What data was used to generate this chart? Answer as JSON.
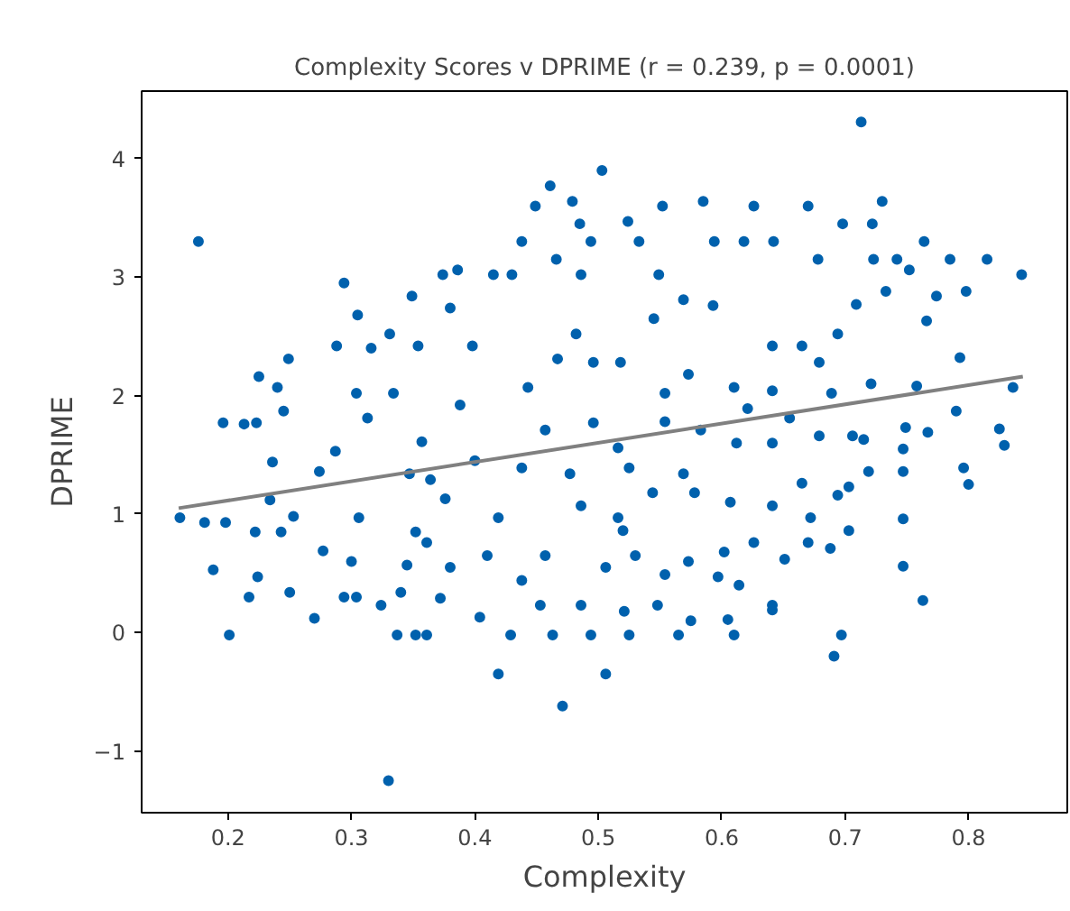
{
  "chart_data": {
    "type": "scatter",
    "title": "Complexity Scores v DPRIME (r = 0.239, p = 0.0001)",
    "xlabel": "Complexity",
    "ylabel": "DPRIME",
    "xlim": [
      0.13,
      0.88
    ],
    "ylim": [
      -1.52,
      4.57
    ],
    "xticks": [
      0.2,
      0.3,
      0.4,
      0.5,
      0.6,
      0.7,
      0.8
    ],
    "yticks": [
      -1,
      0,
      1,
      2,
      3,
      4
    ],
    "grid": false,
    "series": [
      {
        "marker": "circle",
        "color": "#0061ad",
        "x": [
          0.176,
          0.161,
          0.181,
          0.198,
          0.188,
          0.201,
          0.196,
          0.213,
          0.223,
          0.225,
          0.24,
          0.245,
          0.249,
          0.236,
          0.234,
          0.222,
          0.217,
          0.224,
          0.25,
          0.253,
          0.243,
          0.27,
          0.277,
          0.274,
          0.287,
          0.288,
          0.294,
          0.305,
          0.316,
          0.304,
          0.294,
          0.304,
          0.3,
          0.306,
          0.313,
          0.331,
          0.33,
          0.324,
          0.337,
          0.352,
          0.361,
          0.34,
          0.345,
          0.352,
          0.334,
          0.349,
          0.374,
          0.386,
          0.38,
          0.354,
          0.357,
          0.347,
          0.364,
          0.376,
          0.361,
          0.38,
          0.372,
          0.388,
          0.4,
          0.398,
          0.415,
          0.43,
          0.419,
          0.404,
          0.429,
          0.438,
          0.449,
          0.461,
          0.479,
          0.485,
          0.494,
          0.503,
          0.466,
          0.486,
          0.471,
          0.506,
          0.463,
          0.494,
          0.486,
          0.453,
          0.419,
          0.438,
          0.457,
          0.477,
          0.486,
          0.443,
          0.467,
          0.482,
          0.496,
          0.516,
          0.506,
          0.457,
          0.438,
          0.41,
          0.496,
          0.516,
          0.713,
          0.552,
          0.585,
          0.626,
          0.67,
          0.73,
          0.698,
          0.722,
          0.524,
          0.533,
          0.594,
          0.618,
          0.642,
          0.678,
          0.723,
          0.742,
          0.764,
          0.785,
          0.815,
          0.843,
          0.798,
          0.774,
          0.752,
          0.733,
          0.709,
          0.766,
          0.694,
          0.665,
          0.641,
          0.679,
          0.793,
          0.836,
          0.758,
          0.721,
          0.689,
          0.641,
          0.61,
          0.573,
          0.554,
          0.518,
          0.545,
          0.569,
          0.593,
          0.549,
          0.621,
          0.655,
          0.679,
          0.706,
          0.715,
          0.749,
          0.767,
          0.79,
          0.825,
          0.829,
          0.796,
          0.8,
          0.747,
          0.747,
          0.719,
          0.703,
          0.694,
          0.665,
          0.641,
          0.612,
          0.583,
          0.554,
          0.525,
          0.544,
          0.578,
          0.607,
          0.641,
          0.747,
          0.703,
          0.688,
          0.67,
          0.651,
          0.626,
          0.602,
          0.573,
          0.554,
          0.53,
          0.52,
          0.747,
          0.763,
          0.641,
          0.614,
          0.597,
          0.548,
          0.521,
          0.525,
          0.565,
          0.575,
          0.605,
          0.61,
          0.641,
          0.697,
          0.691,
          0.672,
          0.569
        ],
        "values": [
          3.3,
          0.97,
          0.93,
          0.93,
          0.53,
          -0.02,
          1.77,
          1.76,
          1.77,
          2.16,
          2.07,
          1.87,
          2.31,
          1.44,
          1.12,
          0.85,
          0.3,
          0.47,
          0.34,
          0.98,
          0.85,
          0.12,
          0.69,
          1.36,
          1.53,
          2.42,
          2.95,
          2.68,
          2.4,
          2.02,
          0.3,
          0.3,
          0.6,
          0.97,
          1.81,
          2.52,
          -1.25,
          0.23,
          -0.02,
          -0.02,
          -0.02,
          0.34,
          0.57,
          0.85,
          2.02,
          2.84,
          3.02,
          3.06,
          2.74,
          2.42,
          1.61,
          1.34,
          1.29,
          1.13,
          0.76,
          0.55,
          0.29,
          1.92,
          1.45,
          2.42,
          3.02,
          3.02,
          -0.35,
          0.13,
          -0.02,
          3.3,
          3.6,
          3.77,
          3.64,
          3.45,
          3.3,
          3.9,
          3.15,
          3.02,
          -0.62,
          -0.35,
          -0.02,
          -0.02,
          0.23,
          0.23,
          0.97,
          1.39,
          1.71,
          1.34,
          1.07,
          2.07,
          2.31,
          2.52,
          2.28,
          0.97,
          0.55,
          0.65,
          0.44,
          0.65,
          1.77,
          1.56,
          4.31,
          3.6,
          3.64,
          3.6,
          3.6,
          3.64,
          3.45,
          3.45,
          3.47,
          3.3,
          3.3,
          3.3,
          3.3,
          3.15,
          3.15,
          3.15,
          3.3,
          3.15,
          3.15,
          3.02,
          2.88,
          2.84,
          3.06,
          2.88,
          2.77,
          2.63,
          2.52,
          2.42,
          2.42,
          2.28,
          2.32,
          2.07,
          2.08,
          2.1,
          2.02,
          2.04,
          2.07,
          2.18,
          2.02,
          2.28,
          2.65,
          2.81,
          2.76,
          3.02,
          1.89,
          1.81,
          1.66,
          1.66,
          1.63,
          1.73,
          1.69,
          1.87,
          1.72,
          1.58,
          1.39,
          1.25,
          1.55,
          1.36,
          1.36,
          1.23,
          1.16,
          1.26,
          1.6,
          1.6,
          1.71,
          1.78,
          1.39,
          1.18,
          1.18,
          1.1,
          1.07,
          0.96,
          0.86,
          0.71,
          0.76,
          0.62,
          0.76,
          0.68,
          0.6,
          0.49,
          0.65,
          0.86,
          0.56,
          0.27,
          0.23,
          0.4,
          0.47,
          0.23,
          0.18,
          -0.02,
          -0.02,
          0.1,
          0.11,
          -0.02,
          0.19,
          -0.02,
          -0.2,
          0.97,
          1.34
        ]
      },
      {
        "type": "line",
        "color": "#808080",
        "x": [
          0.16,
          0.844
        ],
        "values": [
          1.05,
          2.16
        ]
      }
    ]
  }
}
